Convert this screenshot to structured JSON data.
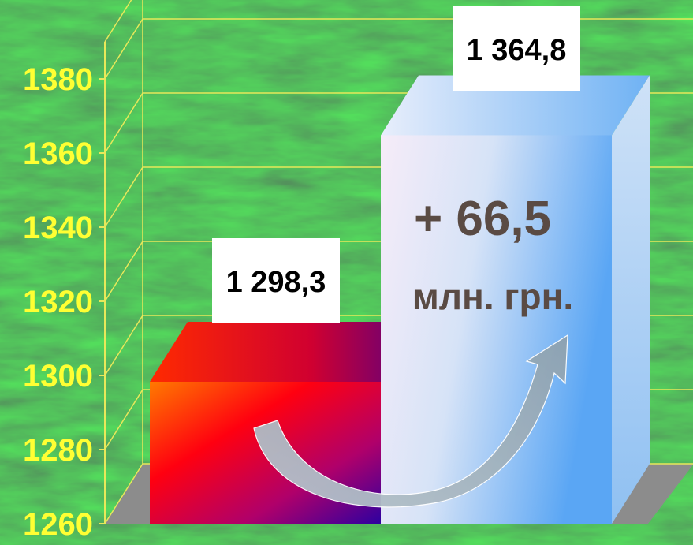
{
  "chart_data": {
    "type": "bar",
    "categories": [
      "",
      ""
    ],
    "values": [
      1298.3,
      1364.8
    ],
    "value_labels": [
      "1 298,3",
      "1 364,8"
    ],
    "ylim": [
      1260,
      1390
    ],
    "yticks": [
      1260,
      1280,
      1300,
      1320,
      1340,
      1360,
      1380
    ],
    "ytick_labels": [
      "1260",
      "1280",
      "1300",
      "1320",
      "1340",
      "1360",
      "1380"
    ],
    "grid": true,
    "annotation": {
      "line1": "+ 66,5",
      "line2": "млн. грн."
    },
    "colors": {
      "background": "#1c4a2a",
      "grid": "#e8e85a",
      "tick_text": "#ffff33",
      "bar1_front": [
        "#ff6a00",
        "#ff0000",
        "#c0005a",
        "#3a00a0"
      ],
      "bar2_front": [
        "#f4e8f8",
        "#c9dcf6",
        "#5aa6f4"
      ],
      "arrow": "#a9b7c0",
      "annotation_text": "#5a4b44"
    }
  }
}
